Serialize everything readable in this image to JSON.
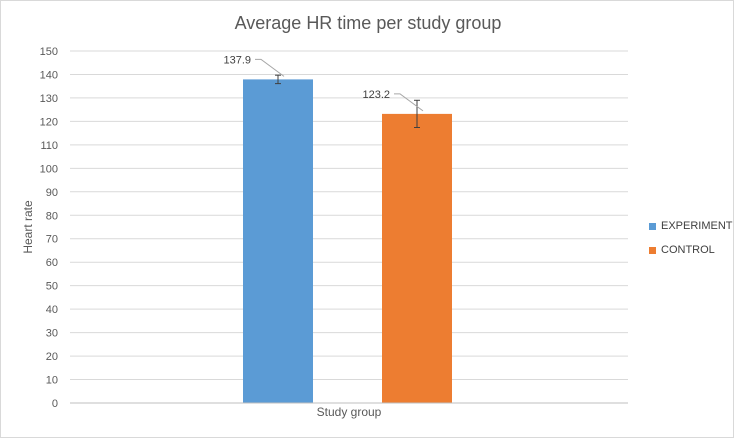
{
  "chart_data": {
    "type": "bar",
    "title": "Average HR time per study group",
    "xlabel": "Study group",
    "ylabel": "Heart rate",
    "ylim": [
      0,
      150
    ],
    "yticks": [
      0,
      10,
      20,
      30,
      40,
      50,
      60,
      70,
      80,
      90,
      100,
      110,
      120,
      130,
      140,
      150
    ],
    "grid": true,
    "legend_position": "right",
    "series": [
      {
        "name": "EXPERIMENT",
        "value": 137.9,
        "label": "137.9",
        "error": 1.8,
        "color": "#5b9bd5"
      },
      {
        "name": "CONTROL",
        "value": 123.2,
        "label": "123.2",
        "error": 5.8,
        "color": "#ed7d31"
      }
    ]
  }
}
